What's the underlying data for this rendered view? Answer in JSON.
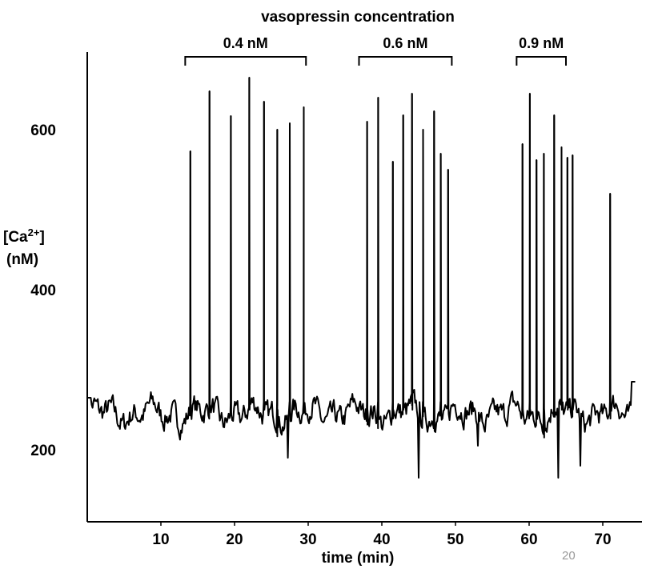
{
  "chart_data": {
    "type": "line",
    "title": "vasopressin concentration",
    "xlabel": "time (min)",
    "ylabel_line1": "[Ca",
    "ylabel_sup": "2+",
    "ylabel_line1_end": "]",
    "ylabel_line2": "(nM)",
    "xlim": [
      0,
      75
    ],
    "ylim": [
      110,
      700
    ],
    "xticks": [
      10,
      20,
      30,
      40,
      50,
      60,
      70
    ],
    "xtick_labels": [
      "10",
      "20",
      "30",
      "40",
      "50",
      "60",
      "70"
    ],
    "yticks": [
      200,
      400,
      600
    ],
    "ytick_labels": [
      "200",
      "400",
      "600"
    ],
    "grid": false,
    "line_color": "#000000",
    "baseline_nM": 245,
    "concentration_periods": [
      {
        "label": "0.4 nM",
        "start": 13.3,
        "end": 29.7
      },
      {
        "label": "0.6 nM",
        "start": 36.9,
        "end": 49.5
      },
      {
        "label": "0.9 nM",
        "start": 58.3,
        "end": 65.0
      }
    ],
    "spikes": [
      {
        "t": 14.0,
        "peak": 573
      },
      {
        "t": 16.6,
        "peak": 648
      },
      {
        "t": 19.5,
        "peak": 617
      },
      {
        "t": 22.0,
        "peak": 665
      },
      {
        "t": 24.0,
        "peak": 635
      },
      {
        "t": 25.8,
        "peak": 600
      },
      {
        "t": 27.5,
        "peak": 608
      },
      {
        "t": 29.4,
        "peak": 628
      },
      {
        "t": 38.0,
        "peak": 610
      },
      {
        "t": 39.5,
        "peak": 640
      },
      {
        "t": 41.5,
        "peak": 560
      },
      {
        "t": 42.9,
        "peak": 618
      },
      {
        "t": 44.1,
        "peak": 645
      },
      {
        "t": 45.6,
        "peak": 600
      },
      {
        "t": 47.1,
        "peak": 623
      },
      {
        "t": 48.0,
        "peak": 570
      },
      {
        "t": 49.0,
        "peak": 550
      },
      {
        "t": 59.1,
        "peak": 582
      },
      {
        "t": 60.1,
        "peak": 645
      },
      {
        "t": 61.0,
        "peak": 562
      },
      {
        "t": 62.0,
        "peak": 570
      },
      {
        "t": 63.4,
        "peak": 618
      },
      {
        "t": 64.4,
        "peak": 578
      },
      {
        "t": 65.2,
        "peak": 565
      },
      {
        "t": 65.9,
        "peak": 568
      },
      {
        "t": 71.0,
        "peak": 520
      }
    ],
    "dips": [
      {
        "t": 27.3,
        "value": 190
      },
      {
        "t": 45.0,
        "value": 165
      },
      {
        "t": 53.0,
        "value": 205
      },
      {
        "t": 64.0,
        "value": 165
      },
      {
        "t": 67.0,
        "value": 180
      }
    ]
  },
  "page_number": "20"
}
